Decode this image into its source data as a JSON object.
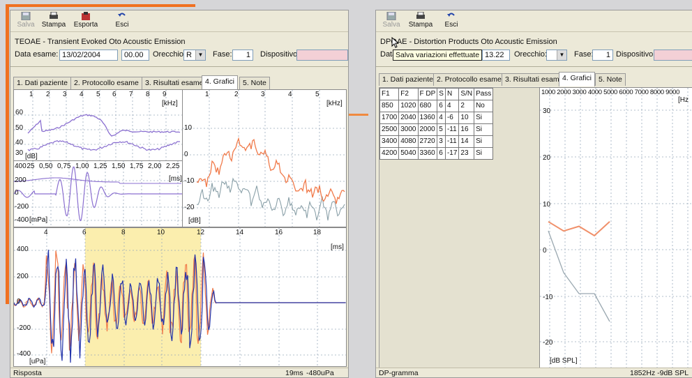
{
  "left": {
    "toolbar": {
      "save": "Salva",
      "print": "Stampa",
      "export": "Esporta",
      "exit": "Esci"
    },
    "title": "TEOAE - Transient Evoked Oto Acoustic Emission",
    "exam_date_label": "Data esame:",
    "exam_date": "13/02/2004",
    "exam_time": "00.00",
    "ear_label": "Orecchio:",
    "ear_value": "R",
    "phase_label": "Fase:",
    "phase_value": "1",
    "device_label": "Dispositivo:",
    "tabs": [
      "1. Dati paziente",
      "2. Protocollo esame",
      "3. Risultati esame",
      "4. Grafici",
      "5. Note"
    ],
    "active_tab": 3,
    "spectrum_top": {
      "ticks": [
        "1",
        "2",
        "3",
        "4",
        "5",
        "6",
        "7",
        "8",
        "9"
      ],
      "unit": "[kHz]",
      "y_ticks": [
        "60",
        "50",
        "40",
        "30"
      ],
      "y_unit": "[dB]"
    },
    "waveform_small": {
      "ticks": [
        "0,25",
        "0,50",
        "0,75",
        "1,00",
        "1,25",
        "1,50",
        "1,75",
        "2,00",
        "2,25"
      ],
      "unit": "[ms]",
      "y_ticks": [
        "400",
        "200",
        "0",
        "-200",
        "-400"
      ],
      "y_unit": "[mPa]"
    },
    "spectrum_right": {
      "ticks": [
        "1",
        "2",
        "3",
        "4",
        "5"
      ],
      "unit": "[kHz]",
      "y_ticks": [
        "10",
        "0",
        "-10",
        "-20"
      ],
      "y_unit": "[dB]"
    },
    "response": {
      "ticks": [
        "4",
        "6",
        "8",
        "10",
        "12",
        "14",
        "16",
        "18"
      ],
      "unit": "[ms]",
      "y_ticks": [
        "400",
        "200",
        "0",
        "-200",
        "-400"
      ],
      "y_unit": "[uPa]"
    },
    "status_left": "Risposta",
    "status_time": "19ms",
    "status_value": "-480uPa",
    "colors": {
      "purple": "#8a6fd0",
      "orange": "#f07a4a",
      "grey": "#8aa0a8",
      "blue": "#2233aa",
      "highlight": "#fbeeae"
    }
  },
  "right": {
    "toolbar": {
      "save": "Salva",
      "print": "Stampa",
      "exit": "Esci"
    },
    "title": "DPOAE - Distortion Products Oto Acoustic Emission",
    "exam_date_label": "Data",
    "tooltip": "Salva variazioni effettuate",
    "exam_time": "13.22",
    "ear_label": "Orecchio:",
    "ear_value": "",
    "phase_label": "Fase:",
    "phase_value": "1",
    "device_label": "Dispositivo:",
    "tabs": [
      "1. Dati paziente",
      "2. Protocollo esame",
      "3. Risultati esame",
      "4. Grafici",
      "5. Note"
    ],
    "active_tab": 3,
    "table": {
      "headers": [
        "F1",
        "F2",
        "F DP",
        "S",
        "N",
        "S/N",
        "Pass"
      ],
      "rows": [
        [
          "850",
          "1020",
          "680",
          "6",
          "4",
          "2",
          "No"
        ],
        [
          "1700",
          "2040",
          "1360",
          "4",
          "-6",
          "10",
          "Si"
        ],
        [
          "2500",
          "3000",
          "2000",
          "5",
          "-11",
          "16",
          "Si"
        ],
        [
          "3400",
          "4080",
          "2720",
          "3",
          "-11",
          "14",
          "Si"
        ],
        [
          "4200",
          "5040",
          "3360",
          "6",
          "-17",
          "23",
          "Si"
        ]
      ]
    },
    "dpgram": {
      "x_ticks": "1000 2000 3000 4000 5000 6000 7000 8000 9000",
      "x_unit": "[Hz",
      "y_ticks": [
        "30",
        "20",
        "10",
        "0",
        "-10",
        "-20"
      ],
      "y_unit": "[dB SPL]"
    },
    "status_left": "DP-gramma",
    "status_right": "1852Hz -9dB SPL",
    "colors": {
      "signal": "#f0906a",
      "noise": "#9aa8b0"
    }
  }
}
